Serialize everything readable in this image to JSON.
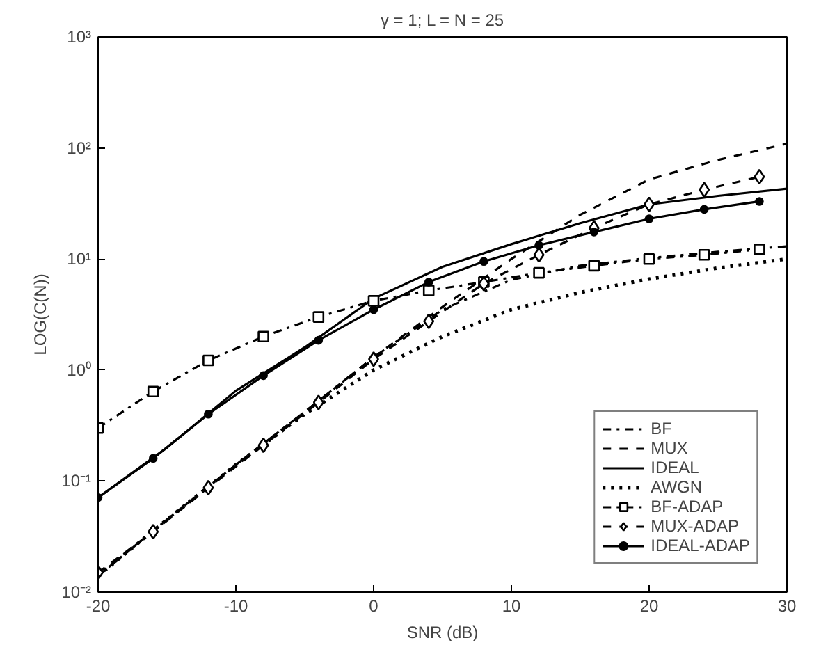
{
  "chart_data": {
    "type": "line",
    "title": "γ = 1; L = N = 25",
    "xlabel": "SNR (dB)",
    "ylabel": "LOG(C(N))",
    "log": "y",
    "grid": false,
    "legend": "bottom right",
    "xlim": [
      -20,
      30
    ],
    "ylim": [
      0.01,
      1000
    ],
    "xticks": [
      -20,
      -10,
      0,
      10,
      20,
      30
    ],
    "yticks": [
      {
        "value": 0.01,
        "label": "10⁻²"
      },
      {
        "value": 0.1,
        "label": "10⁻¹"
      },
      {
        "value": 1,
        "label": "10⁰"
      },
      {
        "value": 10,
        "label": "10¹"
      },
      {
        "value": 100,
        "label": "10²"
      },
      {
        "value": 1000,
        "label": "10³"
      }
    ],
    "series": [
      {
        "name": "BF",
        "color": "#000000",
        "line_style": "dashdot",
        "marker": "none",
        "x": [
          -20,
          -15,
          -10,
          -5,
          0,
          5,
          10,
          15,
          20,
          25,
          30
        ],
        "values": [
          0.014,
          0.045,
          0.14,
          0.42,
          1.3,
          3.5,
          6.5,
          8.7,
          10.2,
          11.6,
          13
        ]
      },
      {
        "name": "MUX",
        "color": "#000000",
        "line_style": "dashed",
        "marker": "none",
        "x": [
          -20,
          -15,
          -10,
          -5,
          0,
          5,
          10,
          15,
          20,
          25,
          30
        ],
        "values": [
          0.014,
          0.045,
          0.14,
          0.42,
          1.3,
          3.7,
          10,
          25,
          52,
          78,
          109
        ]
      },
      {
        "name": "IDEAL",
        "color": "#000000",
        "line_style": "solid",
        "marker": "none",
        "x": [
          -20,
          -15,
          -10,
          -5,
          0,
          5,
          10,
          15,
          20,
          25,
          30
        ],
        "values": [
          0.071,
          0.2,
          0.65,
          1.6,
          4.4,
          8.5,
          13.6,
          21,
          31,
          37,
          43
        ]
      },
      {
        "name": "AWGN",
        "color": "#000000",
        "line_style": "dotted",
        "marker": "none",
        "x": [
          -20,
          -15,
          -10,
          -5,
          0,
          5,
          10,
          15,
          20,
          25,
          30
        ],
        "values": [
          0.014,
          0.045,
          0.14,
          0.4,
          1,
          2,
          3.5,
          5,
          6.6,
          8.3,
          10
        ]
      },
      {
        "name": "BF-ADAP",
        "color": "#000000",
        "line_style": "dashdot",
        "marker": "square",
        "x": [
          -20,
          -16,
          -12,
          -8,
          -4,
          0,
          4,
          8,
          12,
          16,
          20,
          24,
          28
        ],
        "values": [
          0.3,
          0.64,
          1.22,
          2,
          3,
          4.2,
          5.2,
          6.2,
          7.5,
          8.7,
          10,
          10.9,
          12.2
        ]
      },
      {
        "name": "MUX-ADAP",
        "color": "#000000",
        "line_style": "dashed",
        "marker": "diamond",
        "x": [
          -20,
          -16,
          -12,
          -8,
          -4,
          0,
          4,
          8,
          12,
          16,
          20,
          24,
          28
        ],
        "values": [
          0.015,
          0.035,
          0.087,
          0.21,
          0.51,
          1.25,
          2.75,
          6,
          10.9,
          19,
          31,
          42,
          55
        ]
      },
      {
        "name": "IDEAL-ADAP",
        "color": "#000000",
        "line_style": "solid",
        "marker": "circle",
        "x": [
          -20,
          -16,
          -12,
          -8,
          -4,
          0,
          4,
          8,
          12,
          16,
          20,
          24,
          28
        ],
        "values": [
          0.071,
          0.16,
          0.4,
          0.89,
          1.85,
          3.5,
          6.2,
          9.5,
          13.3,
          17.5,
          23,
          28,
          33
        ]
      }
    ]
  }
}
